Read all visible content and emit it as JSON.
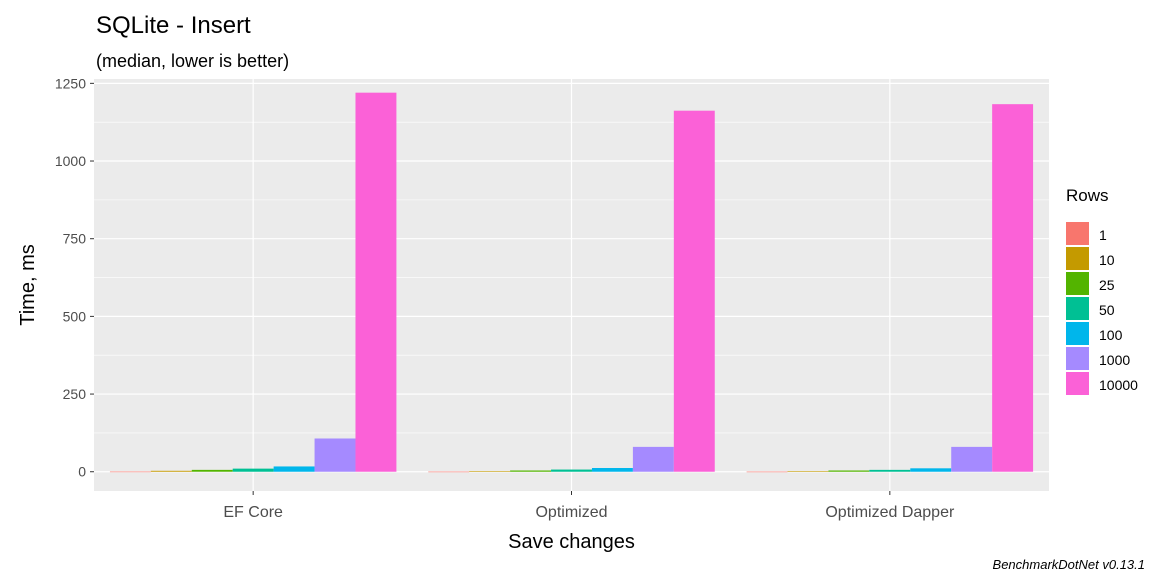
{
  "chart_data": {
    "type": "bar",
    "title": "SQLite - Insert",
    "subtitle": "(median, lower is better)",
    "caption": "BenchmarkDotNet v0.13.1",
    "xlabel": "Save changes",
    "ylabel": "Time, ms",
    "categories": [
      "EF Core",
      "Optimized",
      "Optimized Dapper"
    ],
    "ylim": [
      -62,
      1264
    ],
    "yticks": [
      0,
      250,
      500,
      750,
      1000,
      1250
    ],
    "grid": true,
    "legend": {
      "title": "Rows",
      "position": "right"
    },
    "series": [
      {
        "name": "1",
        "color": "#F8766D",
        "values": [
          0.5,
          0.4,
          0.4
        ]
      },
      {
        "name": "10",
        "color": "#C49A00",
        "values": [
          3,
          2,
          2
        ]
      },
      {
        "name": "25",
        "color": "#53B400",
        "values": [
          6,
          4,
          4
        ]
      },
      {
        "name": "50",
        "color": "#00C094",
        "values": [
          10,
          7,
          6
        ]
      },
      {
        "name": "100",
        "color": "#00B6EB",
        "values": [
          17,
          12,
          11
        ]
      },
      {
        "name": "1000",
        "color": "#A58AFF",
        "values": [
          107,
          80,
          80
        ]
      },
      {
        "name": "10000",
        "color": "#FB61D7",
        "values": [
          1220,
          1162,
          1183
        ]
      }
    ]
  }
}
